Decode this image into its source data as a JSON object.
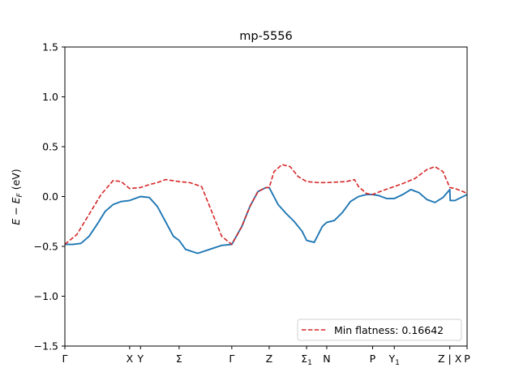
{
  "chart_data": {
    "type": "line",
    "title": "mp-5556",
    "ylabel": "E − E_F (eV)",
    "xlabel": "",
    "ylim": [
      -1.5,
      1.5
    ],
    "yticks": [
      -1.5,
      -1.0,
      -0.5,
      0.0,
      0.5,
      1.0,
      1.5
    ],
    "ytick_labels": [
      "−1.5",
      "−1.0",
      "−0.5",
      "0.0",
      "0.5",
      "1.0",
      "1.5"
    ],
    "xlim": [
      0,
      1
    ],
    "high_symmetry_points": [
      {
        "label": "Γ",
        "x": 0.0
      },
      {
        "label": "X",
        "x": 0.161
      },
      {
        "label": "Y",
        "x": 0.188
      },
      {
        "label": "Σ",
        "x": 0.284
      },
      {
        "label": "Γ",
        "x": 0.415
      },
      {
        "label": "Z",
        "x": 0.508
      },
      {
        "label": "Σ₁",
        "x": 0.601
      },
      {
        "label": "N",
        "x": 0.651
      },
      {
        "label": "P",
        "x": 0.765
      },
      {
        "label": "Y₁",
        "x": 0.819
      },
      {
        "label": "Z | X",
        "x": 0.957
      },
      {
        "label": "P",
        "x": 1.0
      }
    ],
    "series": [
      {
        "name": "",
        "style": "solid",
        "color": "#1f77b4",
        "x": [
          0.0,
          0.02,
          0.04,
          0.06,
          0.08,
          0.1,
          0.12,
          0.14,
          0.161,
          0.188,
          0.21,
          0.23,
          0.25,
          0.27,
          0.284,
          0.3,
          0.33,
          0.36,
          0.39,
          0.415,
          0.44,
          0.46,
          0.48,
          0.5,
          0.508,
          0.53,
          0.55,
          0.57,
          0.59,
          0.601,
          0.62,
          0.64,
          0.651,
          0.67,
          0.69,
          0.71,
          0.73,
          0.75,
          0.765,
          0.78,
          0.8,
          0.819,
          0.84,
          0.86,
          0.88,
          0.9,
          0.92,
          0.94,
          0.957,
          0.958,
          0.97,
          0.98,
          1.0
        ],
        "y": [
          -0.48,
          -0.48,
          -0.47,
          -0.4,
          -0.28,
          -0.15,
          -0.08,
          -0.05,
          -0.04,
          0.0,
          -0.01,
          -0.1,
          -0.25,
          -0.4,
          -0.44,
          -0.53,
          -0.57,
          -0.53,
          -0.49,
          -0.48,
          -0.3,
          -0.1,
          0.05,
          0.09,
          0.09,
          -0.08,
          -0.17,
          -0.25,
          -0.35,
          -0.44,
          -0.46,
          -0.3,
          -0.26,
          -0.24,
          -0.16,
          -0.05,
          0.0,
          0.02,
          0.02,
          0.01,
          -0.02,
          -0.02,
          0.02,
          0.07,
          0.04,
          -0.03,
          -0.06,
          -0.01,
          0.07,
          -0.04,
          -0.04,
          -0.02,
          0.02
        ]
      },
      {
        "name": "Min flatness: 0.16642",
        "style": "dashed",
        "color": "#d62728",
        "x": [
          0.0,
          0.03,
          0.06,
          0.09,
          0.12,
          0.14,
          0.161,
          0.188,
          0.21,
          0.23,
          0.25,
          0.284,
          0.31,
          0.34,
          0.37,
          0.39,
          0.415,
          0.44,
          0.46,
          0.48,
          0.5,
          0.508,
          0.52,
          0.54,
          0.56,
          0.58,
          0.601,
          0.63,
          0.651,
          0.7,
          0.72,
          0.73,
          0.75,
          0.765,
          0.79,
          0.819,
          0.84,
          0.87,
          0.9,
          0.92,
          0.94,
          0.957,
          0.97,
          0.99,
          1.0
        ],
        "y": [
          -0.48,
          -0.38,
          -0.18,
          0.02,
          0.16,
          0.15,
          0.08,
          0.09,
          0.12,
          0.14,
          0.17,
          0.15,
          0.14,
          0.1,
          -0.2,
          -0.4,
          -0.48,
          -0.3,
          -0.1,
          0.05,
          0.09,
          0.09,
          0.25,
          0.32,
          0.3,
          0.2,
          0.15,
          0.14,
          0.14,
          0.15,
          0.17,
          0.1,
          0.03,
          0.02,
          0.06,
          0.1,
          0.13,
          0.18,
          0.27,
          0.3,
          0.25,
          0.09,
          0.08,
          0.05,
          0.03
        ]
      }
    ],
    "legend": {
      "position": "lower-right",
      "entries": [
        "Min flatness: 0.16642"
      ]
    },
    "grid": false
  }
}
